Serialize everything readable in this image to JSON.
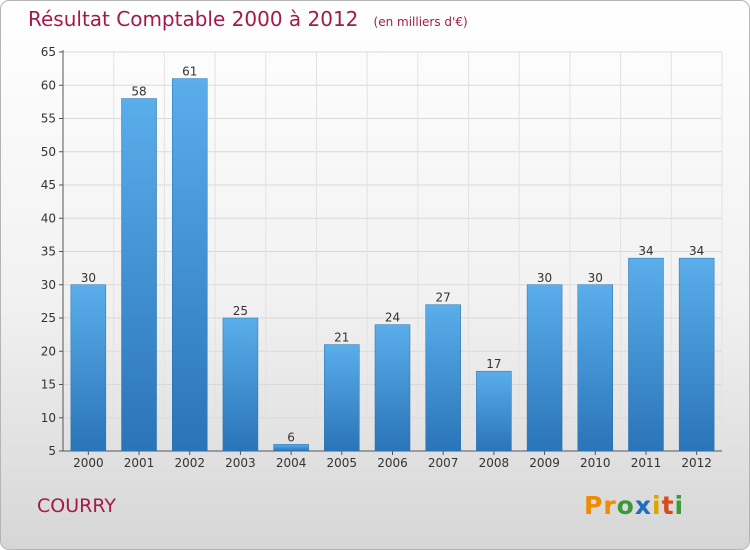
{
  "chart_data": {
    "type": "bar",
    "title": "Résultat Comptable 2000 à 2012",
    "subtitle": "(en milliers d'€)",
    "categories": [
      "2000",
      "2001",
      "2002",
      "2003",
      "2004",
      "2005",
      "2006",
      "2007",
      "2008",
      "2009",
      "2010",
      "2011",
      "2012"
    ],
    "values": [
      30,
      58,
      61,
      25,
      6,
      21,
      24,
      27,
      17,
      30,
      30,
      34,
      34
    ],
    "ylim": [
      5,
      65
    ],
    "yticks": [
      5,
      10,
      15,
      20,
      25,
      30,
      35,
      40,
      45,
      50,
      55,
      60,
      65
    ],
    "grid": true,
    "bar_color": "#3d8fd6"
  },
  "commune": "COURRY",
  "brand": {
    "letters": [
      {
        "char": "P",
        "color": "#f08a00"
      },
      {
        "char": "r",
        "color": "#f08a00"
      },
      {
        "char": "o",
        "color": "#3a9a3a"
      },
      {
        "char": "x",
        "color": "#1e6fc0"
      },
      {
        "char": "i",
        "color": "#d8a800"
      },
      {
        "char": "t",
        "color": "#d84a1a"
      },
      {
        "char": "i",
        "color": "#3a9a3a"
      }
    ]
  }
}
